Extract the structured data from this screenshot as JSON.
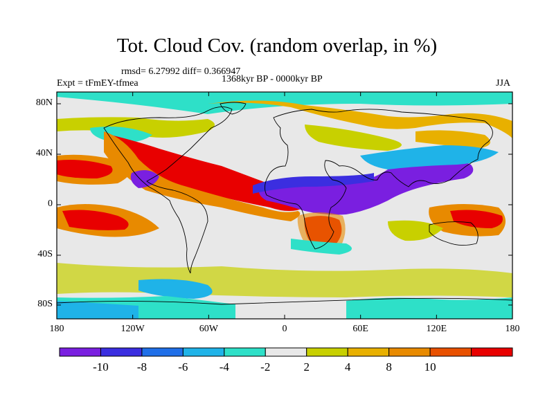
{
  "title": "Tot. Cloud Cov. (random overlap, in %)",
  "stats": "rmsd= 6.27992 diff= 0.366947",
  "period": "1368kyr BP - 0000kyr BP",
  "expt": "Expt = tFmEY-tfmea",
  "season": "JJA",
  "axes": {
    "y_ticks": [
      "80N",
      "40N",
      "0",
      "40S",
      "80S"
    ],
    "x_ticks": [
      "180",
      "120W",
      "60W",
      "0",
      "60E",
      "120E",
      "180"
    ]
  },
  "colorbar": {
    "levels": [
      "-10",
      "-8",
      "-6",
      "-4",
      "-2",
      "2",
      "4",
      "8",
      "10"
    ],
    "colors": [
      "#7a1fe0",
      "#3b2ee0",
      "#1f6fe8",
      "#1fb3e8",
      "#2ee0c8",
      "#e8e8e8",
      "#c8d000",
      "#e8b000",
      "#e88a00",
      "#e85000",
      "#e80000"
    ]
  },
  "colors": {
    "neutral": "#e8e8e8",
    "coast": "#000000"
  }
}
